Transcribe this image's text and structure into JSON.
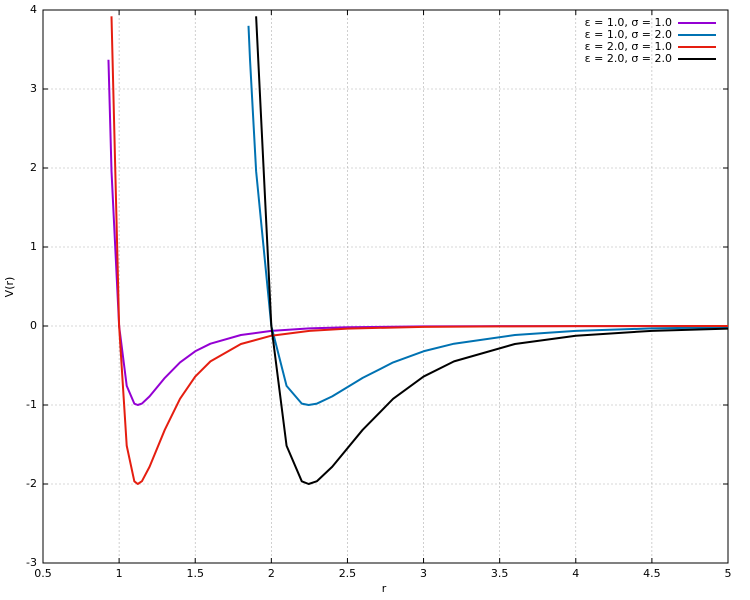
{
  "chart_data": {
    "type": "line",
    "xlabel": "r",
    "ylabel": "V(r)",
    "xlim": [
      0.5,
      5
    ],
    "ylim": [
      -3,
      4
    ],
    "xticks": [
      0.5,
      1,
      1.5,
      2,
      2.5,
      3,
      3.5,
      4,
      4.5,
      5
    ],
    "yticks": [
      -3,
      -2,
      -1,
      0,
      1,
      2,
      3,
      4
    ],
    "grid": true,
    "legend": "top-right",
    "series": [
      {
        "name": "ε = 1.0, σ = 1.0",
        "color": "#9400d3",
        "x": [
          0.93,
          0.95,
          1.0,
          1.05,
          1.1,
          1.1225,
          1.15,
          1.2,
          1.3,
          1.4,
          1.5,
          1.6,
          1.8,
          2.0,
          2.25,
          2.5,
          3.0,
          3.5,
          4.0,
          5.0
        ],
        "values": [
          3.37,
          1.961,
          0,
          -0.758,
          -0.983,
          -1,
          -0.982,
          -0.891,
          -0.657,
          -0.461,
          -0.32,
          -0.224,
          -0.114,
          -0.0615,
          -0.0306,
          -0.0163,
          -0.0055,
          -0.0022,
          -0.001,
          -0.0003
        ]
      },
      {
        "name": "ε = 1.0, σ = 2.0",
        "color": "#0072b2",
        "x": [
          1.85,
          1.86,
          1.9,
          2.0,
          2.1,
          2.2,
          2.245,
          2.3,
          2.4,
          2.6,
          2.8,
          3.0,
          3.2,
          3.6,
          4.0,
          4.5,
          5.0
        ],
        "values": [
          3.8,
          3.37,
          1.961,
          0,
          -0.758,
          -0.983,
          -1,
          -0.982,
          -0.891,
          -0.657,
          -0.461,
          -0.32,
          -0.224,
          -0.114,
          -0.0615,
          -0.0306,
          -0.0163
        ]
      },
      {
        "name": "ε = 2.0, σ = 1.0",
        "color": "#e51e10",
        "x": [
          0.95,
          1.0,
          1.05,
          1.1,
          1.1225,
          1.15,
          1.2,
          1.3,
          1.4,
          1.5,
          1.6,
          1.8,
          2.0,
          2.25,
          2.5,
          3.0,
          3.5,
          4.0,
          5.0
        ],
        "values": [
          3.92,
          0,
          -1.516,
          -1.966,
          -2,
          -1.964,
          -1.782,
          -1.314,
          -0.922,
          -0.64,
          -0.448,
          -0.228,
          -0.123,
          -0.0612,
          -0.0326,
          -0.011,
          -0.0044,
          -0.002,
          -0.0005
        ]
      },
      {
        "name": "ε = 2.0, σ = 2.0",
        "color": "#000000",
        "x": [
          1.9,
          2.0,
          2.1,
          2.2,
          2.245,
          2.3,
          2.4,
          2.6,
          2.8,
          3.0,
          3.2,
          3.6,
          4.0,
          4.5,
          5.0
        ],
        "values": [
          3.92,
          0,
          -1.516,
          -1.966,
          -2,
          -1.964,
          -1.782,
          -1.314,
          -0.922,
          -0.64,
          -0.448,
          -0.228,
          -0.123,
          -0.0612,
          -0.0326
        ]
      }
    ]
  }
}
